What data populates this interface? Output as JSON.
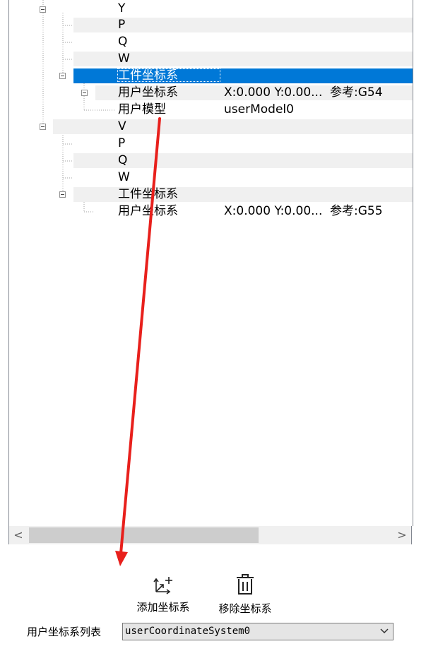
{
  "tree": {
    "rows": [
      {
        "label": "Y",
        "value": "",
        "ref": ""
      },
      {
        "label": "P",
        "value": "",
        "ref": ""
      },
      {
        "label": "Q",
        "value": "",
        "ref": ""
      },
      {
        "label": "W",
        "value": "",
        "ref": ""
      },
      {
        "label": "工件坐标系",
        "value": "",
        "ref": ""
      },
      {
        "label": "用户坐标系",
        "value": "X:0.000 Y:0.00...",
        "ref": "参考:G54"
      },
      {
        "label": "用户模型",
        "value": "userModel0",
        "ref": ""
      },
      {
        "label": "V",
        "value": "",
        "ref": ""
      },
      {
        "label": "P",
        "value": "",
        "ref": ""
      },
      {
        "label": "Q",
        "value": "",
        "ref": ""
      },
      {
        "label": "W",
        "value": "",
        "ref": ""
      },
      {
        "label": "工件坐标系",
        "value": "",
        "ref": ""
      },
      {
        "label": "用户坐标系",
        "value": "X:0.000 Y:0.00...",
        "ref": "参考:G55"
      }
    ],
    "selected_index": 4
  },
  "scrollbar": {
    "left_arrow": "<",
    "right_arrow": ">"
  },
  "toolbar": {
    "add_label": "添加坐标系",
    "remove_label": "移除坐标系",
    "add_icon": "add-axes-icon",
    "remove_icon": "trash-icon"
  },
  "combo": {
    "label": "用户坐标系列表",
    "value": "userCoordinateSystem0",
    "icon": "chevron-down-icon"
  },
  "colors": {
    "selection": "#0078d7",
    "annotation_arrow": "#e8201c",
    "row_band": "#f0f0f0"
  }
}
